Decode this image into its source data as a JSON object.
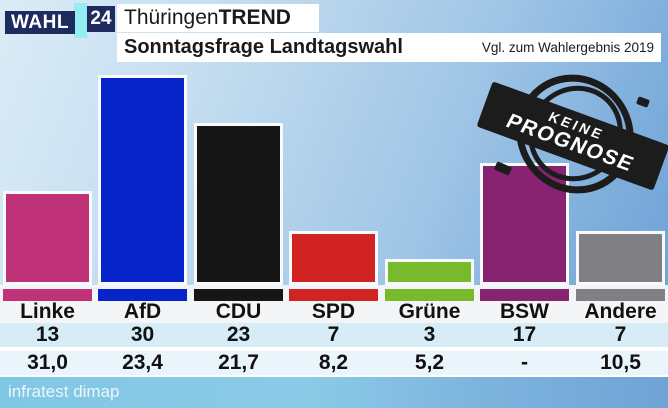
{
  "header": {
    "brand_wahl": "WAHL",
    "brand_year": "24",
    "title_regular": "Thüringen",
    "title_bold": "TREND",
    "subtitle": "Sonntagsfrage Landtagswahl",
    "note": "Vgl. zum Wahlergebnis 2019"
  },
  "stamp": {
    "line1": "KEINE",
    "line2": "PROGNOSE"
  },
  "footer": {
    "source": "infratest dimap"
  },
  "chart_data": {
    "type": "bar",
    "title": "ThüringenTREND — Sonntagsfrage Landtagswahl",
    "categories": [
      "Linke",
      "AfD",
      "CDU",
      "SPD",
      "Grüne",
      "BSW",
      "Andere"
    ],
    "series": [
      {
        "name": "Sonntagsfrage",
        "values": [
          13,
          30,
          23,
          7,
          3,
          17,
          7
        ]
      },
      {
        "name": "Wahlergebnis 2019",
        "values": [
          "31,0",
          "23,4",
          "21,7",
          "8,2",
          "5,2",
          "-",
          "10,5"
        ]
      }
    ],
    "bar_colors": [
      "#bf3277",
      "#0624c9",
      "#161616",
      "#d12422",
      "#79ba2c",
      "#872370",
      "#808084"
    ],
    "ylim": [
      0,
      30
    ],
    "grid": false,
    "legend": "none"
  },
  "colors": {
    "brand_navy": "#1d2b5f",
    "brand_cyan": "#93edf1",
    "band_white": "#ffffff",
    "names_row_bg": "#f3f5f7",
    "values_row_bg": "#d6edf8",
    "prev_row_bg": "#eaf4fb",
    "footer_cyan": "#80c7e4",
    "background_blue": "#6fa3d6",
    "stamp_ink": "#1c1c1c"
  }
}
